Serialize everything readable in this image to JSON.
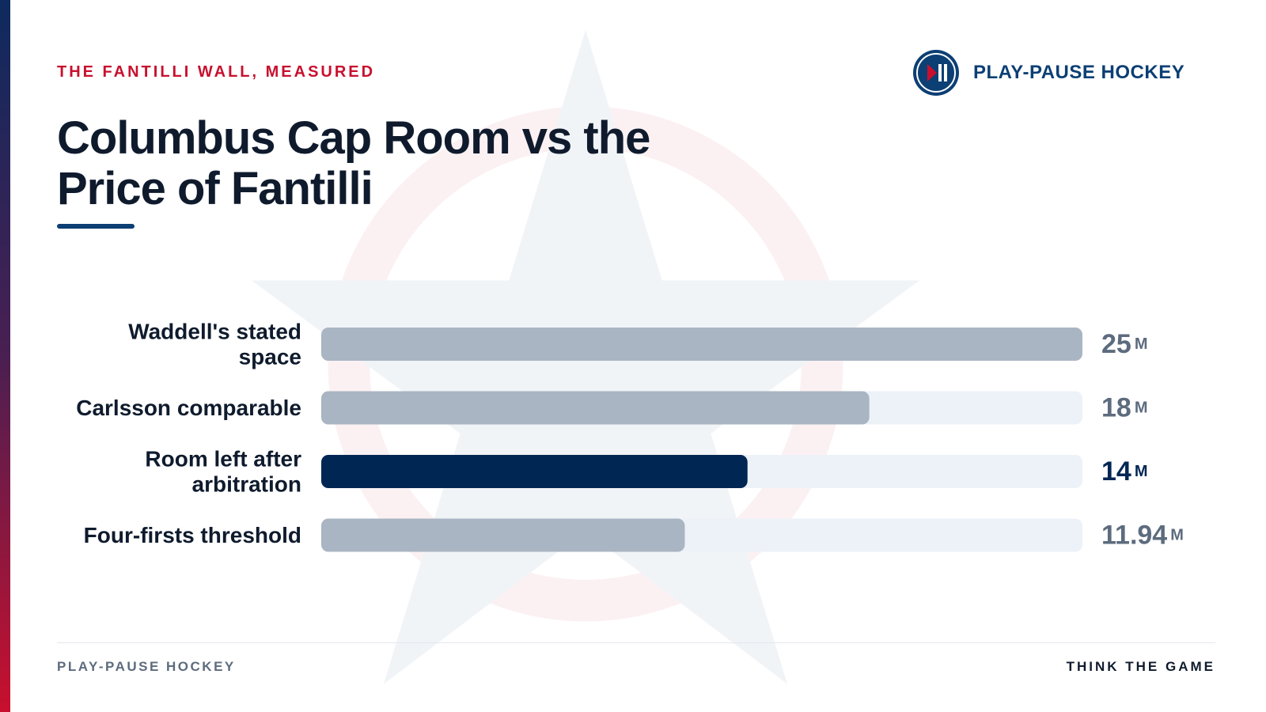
{
  "kicker": "THE FANTILLI WALL, MEASURED",
  "brand": {
    "name": "PLAY-PAUSE HOCKEY",
    "logo_icon": "play-pause-icon"
  },
  "title": "Columbus Cap Room vs the Price of Fantilli",
  "footer": {
    "left": "PLAY-PAUSE HOCKEY",
    "right": "THINK THE GAME"
  },
  "colors": {
    "accent_red": "#c8102e",
    "navy": "#0c3f74",
    "bar_grey": "#a9b5c2",
    "bar_highlight": "#002654",
    "track": "#edf2f8",
    "value_grey": "#5d6b7e"
  },
  "chart_data": {
    "type": "bar",
    "orientation": "horizontal",
    "categories": [
      [
        "Waddell's stated",
        "space"
      ],
      [
        "Carlsson comparable"
      ],
      [
        "Room left after",
        "arbitration"
      ],
      [
        "Four-firsts threshold"
      ]
    ],
    "values": [
      25,
      18,
      14,
      11.94
    ],
    "value_labels": [
      "25",
      "18",
      "14",
      "11.94"
    ],
    "unit": "M",
    "highlight_index": 2,
    "xlim": [
      0,
      25
    ],
    "grid": false,
    "title": "Columbus Cap Room vs the Price of Fantilli"
  }
}
